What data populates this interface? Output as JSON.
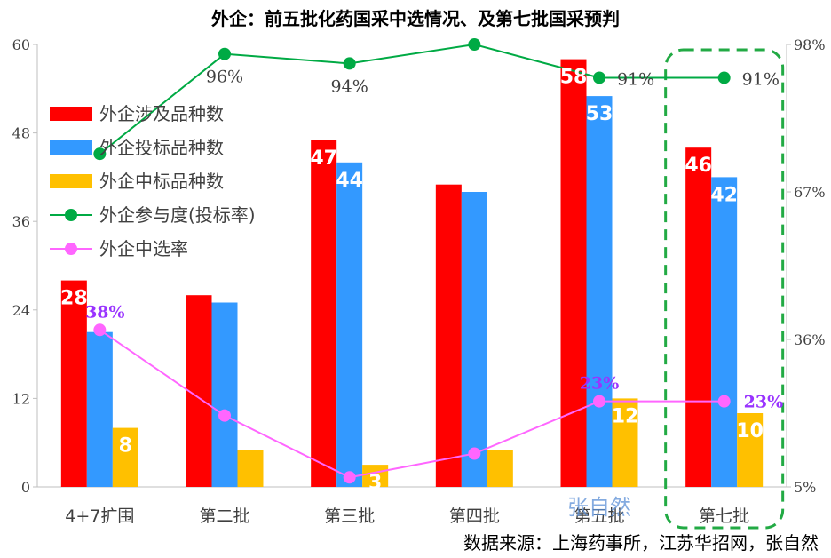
{
  "chart_data": {
    "type": "bar",
    "title": "外企：前五批化药国采中选情况、及第七批国采预判",
    "categories": [
      "4+7扩围",
      "第二批",
      "第三批",
      "第四批",
      "第五批",
      "第七批"
    ],
    "series": [
      {
        "name": "外企涉及品种数",
        "type": "bar",
        "axis": "left",
        "color": "#ff0000",
        "values": [
          28,
          26,
          47,
          41,
          58,
          46
        ],
        "labels": [
          "28",
          "",
          "47",
          "",
          "58",
          "46"
        ]
      },
      {
        "name": "外企投标品种数",
        "type": "bar",
        "axis": "left",
        "color": "#3399ff",
        "values": [
          21,
          25,
          44,
          40,
          53,
          42
        ],
        "labels": [
          "",
          "",
          "44",
          "",
          "53",
          "42"
        ]
      },
      {
        "name": "外企中标品种数",
        "type": "bar",
        "axis": "left",
        "color": "#ffc000",
        "values": [
          8,
          5,
          3,
          5,
          12,
          10
        ],
        "labels": [
          "8",
          "",
          "3",
          "",
          "12",
          "10"
        ]
      },
      {
        "name": "外企参与度(投标率)",
        "type": "line",
        "axis": "right",
        "color": "#00aa44",
        "values": [
          75,
          96,
          94,
          98,
          91,
          91
        ],
        "labels": [
          "",
          "96%",
          "94%",
          "",
          "91%",
          "91%"
        ]
      },
      {
        "name": "外企中选率",
        "type": "line",
        "axis": "right",
        "color": "#ff66ff",
        "values": [
          38,
          20,
          7,
          12,
          23,
          23
        ],
        "labels": [
          "38%",
          "",
          "",
          "",
          "23%",
          "23%"
        ]
      }
    ],
    "y_left": {
      "ticks": [
        "0",
        "12",
        "24",
        "36",
        "48",
        "60"
      ],
      "ylim": [
        0,
        60
      ]
    },
    "y_right": {
      "ticks": [
        "5%",
        "36%",
        "67%",
        "98%"
      ],
      "ylim": [
        5,
        98
      ]
    },
    "legend_position": "top-left",
    "grid": false,
    "highlight_category": "第七批",
    "highlight_color": "#22aa44",
    "source": "数据来源：上海药事所，江苏华招网，张自然",
    "watermark": "张自然"
  }
}
